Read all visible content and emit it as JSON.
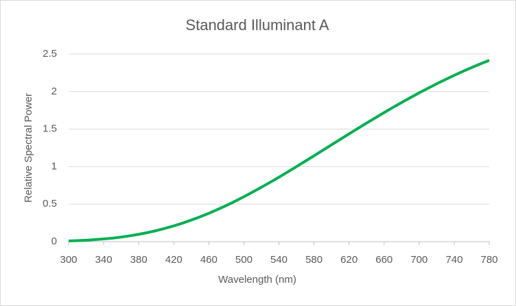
{
  "chart_data": {
    "type": "line",
    "title": "Standard Illuminant A",
    "x_label": "Wavelength (nm)",
    "y_label": "Relative Spectral Power",
    "x": [
      300,
      310,
      320,
      330,
      340,
      350,
      360,
      370,
      380,
      390,
      400,
      410,
      420,
      430,
      440,
      450,
      460,
      470,
      480,
      490,
      500,
      510,
      520,
      530,
      540,
      550,
      560,
      570,
      580,
      590,
      600,
      610,
      620,
      630,
      640,
      650,
      660,
      670,
      680,
      690,
      700,
      710,
      720,
      730,
      740,
      750,
      760,
      770,
      780
    ],
    "values": [
      0.009,
      0.014,
      0.019,
      0.027,
      0.036,
      0.047,
      0.061,
      0.078,
      0.098,
      0.121,
      0.147,
      0.177,
      0.21,
      0.247,
      0.287,
      0.331,
      0.378,
      0.429,
      0.482,
      0.539,
      0.599,
      0.661,
      0.725,
      0.791,
      0.859,
      0.929,
      1.0,
      1.072,
      1.144,
      1.217,
      1.29,
      1.363,
      1.436,
      1.508,
      1.58,
      1.65,
      1.72,
      1.788,
      1.854,
      1.919,
      1.983,
      2.044,
      2.104,
      2.161,
      2.217,
      2.27,
      2.321,
      2.37,
      2.417
    ],
    "color": "#00b050",
    "xlim": [
      300,
      780
    ],
    "xticks": [
      300,
      340,
      380,
      420,
      460,
      500,
      540,
      580,
      620,
      660,
      700,
      740,
      780
    ],
    "ylim": [
      0,
      2.5
    ],
    "yticks": [
      0,
      0.5,
      1,
      1.5,
      2,
      2.5
    ],
    "grid": true
  }
}
